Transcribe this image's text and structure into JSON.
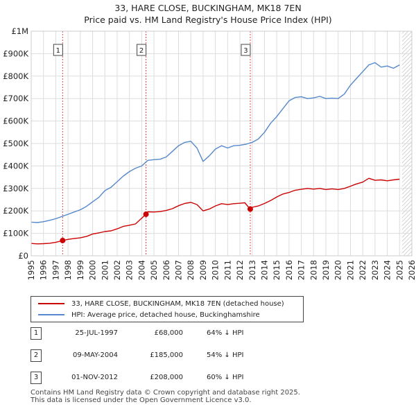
{
  "chart_data": {
    "type": "line",
    "title": "33, HARE CLOSE, BUCKINGHAM, MK18 7EN",
    "subtitle": "Price paid vs. HM Land Registry's House Price Index (HPI)",
    "xlabel": "",
    "ylabel": "",
    "xlim": [
      1995,
      2026
    ],
    "ylim": [
      0,
      1000000
    ],
    "x_ticks": [
      "1995",
      "1996",
      "1997",
      "1998",
      "1999",
      "2000",
      "2001",
      "2002",
      "2003",
      "2004",
      "2005",
      "2006",
      "2007",
      "2008",
      "2009",
      "2010",
      "2011",
      "2012",
      "2013",
      "2014",
      "2015",
      "2016",
      "2017",
      "2018",
      "2019",
      "2020",
      "2021",
      "2022",
      "2023",
      "2024",
      "2025",
      "2026"
    ],
    "y_ticks": [
      {
        "value": 0,
        "label": "£0"
      },
      {
        "value": 100000,
        "label": "£100K"
      },
      {
        "value": 200000,
        "label": "£200K"
      },
      {
        "value": 300000,
        "label": "£300K"
      },
      {
        "value": 400000,
        "label": "£400K"
      },
      {
        "value": 500000,
        "label": "£500K"
      },
      {
        "value": 600000,
        "label": "£600K"
      },
      {
        "value": 700000,
        "label": "£700K"
      },
      {
        "value": 800000,
        "label": "£800K"
      },
      {
        "value": 900000,
        "label": "£900K"
      },
      {
        "value": 1000000,
        "label": "£1M"
      }
    ],
    "grid": true,
    "future_hatch_from": 2025.2,
    "series": [
      {
        "name": "33, HARE CLOSE, BUCKINGHAM, MK18 7EN (detached house)",
        "color": "#cc0000",
        "x": [
          1995,
          1995.5,
          1996,
          1996.5,
          1997,
          1997.56,
          1998,
          1998.5,
          1999,
          1999.5,
          2000,
          2000.5,
          2001,
          2001.5,
          2002,
          2002.5,
          2003,
          2003.5,
          2004.34,
          2004.5,
          2005,
          2005.5,
          2006,
          2006.5,
          2007,
          2007.5,
          2008,
          2008.5,
          2009,
          2009.5,
          2010,
          2010.5,
          2011,
          2011.5,
          2012,
          2012.4,
          2012.83,
          2013,
          2013.5,
          2014,
          2014.5,
          2015,
          2015.5,
          2016,
          2016.5,
          2017,
          2017.5,
          2018,
          2018.5,
          2019,
          2019.5,
          2020,
          2020.5,
          2021,
          2021.5,
          2022,
          2022.5,
          2023,
          2023.5,
          2024,
          2024.5,
          2025
        ],
        "y": [
          55000,
          53000,
          54000,
          56000,
          60000,
          68000,
          73000,
          77000,
          80000,
          86000,
          97000,
          102000,
          108000,
          111000,
          120000,
          131000,
          136000,
          142000,
          185000,
          196000,
          195000,
          197000,
          202000,
          210000,
          223000,
          233000,
          238000,
          228000,
          200000,
          208000,
          222000,
          232000,
          228000,
          232000,
          234000,
          236000,
          208000,
          216000,
          222000,
          233000,
          246000,
          262000,
          275000,
          282000,
          292000,
          296000,
          300000,
          297000,
          300000,
          295000,
          298000,
          295000,
          300000,
          310000,
          320000,
          328000,
          345000,
          336000,
          338000,
          334000,
          338000,
          341000
        ]
      },
      {
        "name": "HPI: Average price, detached house, Buckinghamshire",
        "color": "#5588cc",
        "x": [
          1995,
          1995.5,
          1996,
          1996.5,
          1997,
          1997.5,
          1998,
          1998.5,
          1999,
          1999.5,
          2000,
          2000.5,
          2001,
          2001.5,
          2002,
          2002.5,
          2003,
          2003.5,
          2004,
          2004.5,
          2005,
          2005.5,
          2006,
          2006.5,
          2007,
          2007.5,
          2008,
          2008.5,
          2009,
          2009.5,
          2010,
          2010.5,
          2011,
          2011.5,
          2012,
          2012.5,
          2013,
          2013.5,
          2014,
          2014.5,
          2015,
          2015.5,
          2016,
          2016.5,
          2017,
          2017.5,
          2018,
          2018.5,
          2019,
          2019.5,
          2020,
          2020.5,
          2021,
          2021.5,
          2022,
          2022.5,
          2023,
          2023.5,
          2024,
          2024.5,
          2025
        ],
        "y": [
          150000,
          148000,
          152000,
          158000,
          165000,
          175000,
          185000,
          195000,
          205000,
          220000,
          240000,
          260000,
          290000,
          305000,
          330000,
          355000,
          375000,
          390000,
          400000,
          425000,
          428000,
          430000,
          440000,
          465000,
          490000,
          505000,
          510000,
          480000,
          420000,
          445000,
          475000,
          490000,
          480000,
          490000,
          492000,
          497000,
          505000,
          520000,
          550000,
          590000,
          620000,
          655000,
          690000,
          705000,
          708000,
          700000,
          703000,
          710000,
          700000,
          702000,
          700000,
          720000,
          760000,
          790000,
          820000,
          850000,
          860000,
          840000,
          845000,
          835000,
          850000
        ]
      }
    ],
    "annotations": [
      {
        "label": "1",
        "x": 1997.56
      },
      {
        "label": "2",
        "x": 2004.35
      },
      {
        "label": "3",
        "x": 2012.84
      }
    ],
    "sale_points": [
      {
        "x": 1997.56,
        "y": 68000
      },
      {
        "x": 2004.35,
        "y": 185000
      },
      {
        "x": 2012.84,
        "y": 208000
      }
    ]
  },
  "legend": {
    "items": [
      {
        "label": "33, HARE CLOSE, BUCKINGHAM, MK18 7EN (detached house)",
        "color": "#cc0000"
      },
      {
        "label": "HPI: Average price, detached house, Buckinghamshire",
        "color": "#5588cc"
      }
    ]
  },
  "sales": [
    {
      "num": "1",
      "date": "25-JUL-1997",
      "price": "£68,000",
      "hpi": "64% ↓ HPI"
    },
    {
      "num": "2",
      "date": "09-MAY-2004",
      "price": "£185,000",
      "hpi": "54% ↓ HPI"
    },
    {
      "num": "3",
      "date": "01-NOV-2012",
      "price": "£208,000",
      "hpi": "60% ↓ HPI"
    }
  ],
  "footer": {
    "line1": "Contains HM Land Registry data © Crown copyright and database right 2025.",
    "line2": "This data is licensed under the Open Government Licence v3.0."
  }
}
